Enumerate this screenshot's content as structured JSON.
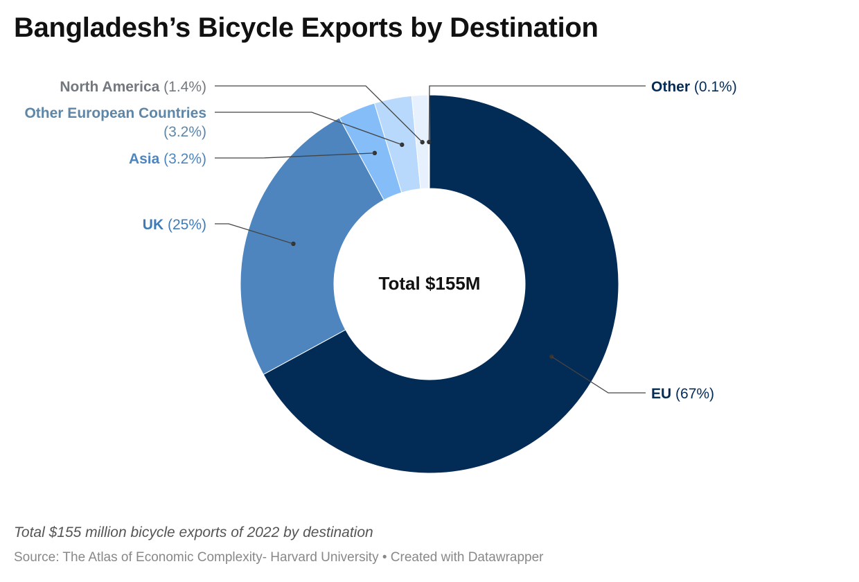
{
  "chart_data": {
    "type": "pie",
    "title": "Bangladesh’s Bicycle Exports by Destination",
    "center_label": "Total $155M",
    "slices": [
      {
        "name": "EU",
        "value": 67,
        "label": "(67%)",
        "color": "#022b55",
        "label_color": "#022b55"
      },
      {
        "name": "UK",
        "value": 25,
        "label": "(25%)",
        "color": "#4e85be",
        "label_color": "#3f7bb8"
      },
      {
        "name": "Asia",
        "value": 3.2,
        "label": "(3.2%)",
        "color": "#84bdf8",
        "label_color": "#4e85be"
      },
      {
        "name": "Other European Countries",
        "value": 3.2,
        "label": "(3.2%)",
        "color": "#b8d9fb",
        "label_color": "#5d86a8"
      },
      {
        "name": "North America",
        "value": 1.4,
        "label": "(1.4%)",
        "color": "#e6f1fd",
        "label_color": "#73787f"
      },
      {
        "name": "Other",
        "value": 0.1,
        "label": "(0.1%)",
        "color": "#f5f9fe",
        "label_color": "#022b55"
      }
    ],
    "note": "Total $155 million bicycle exports of 2022 by destination",
    "source": "Source: The Atlas of Economic Complexity- Harvard University • Created with Datawrapper"
  }
}
